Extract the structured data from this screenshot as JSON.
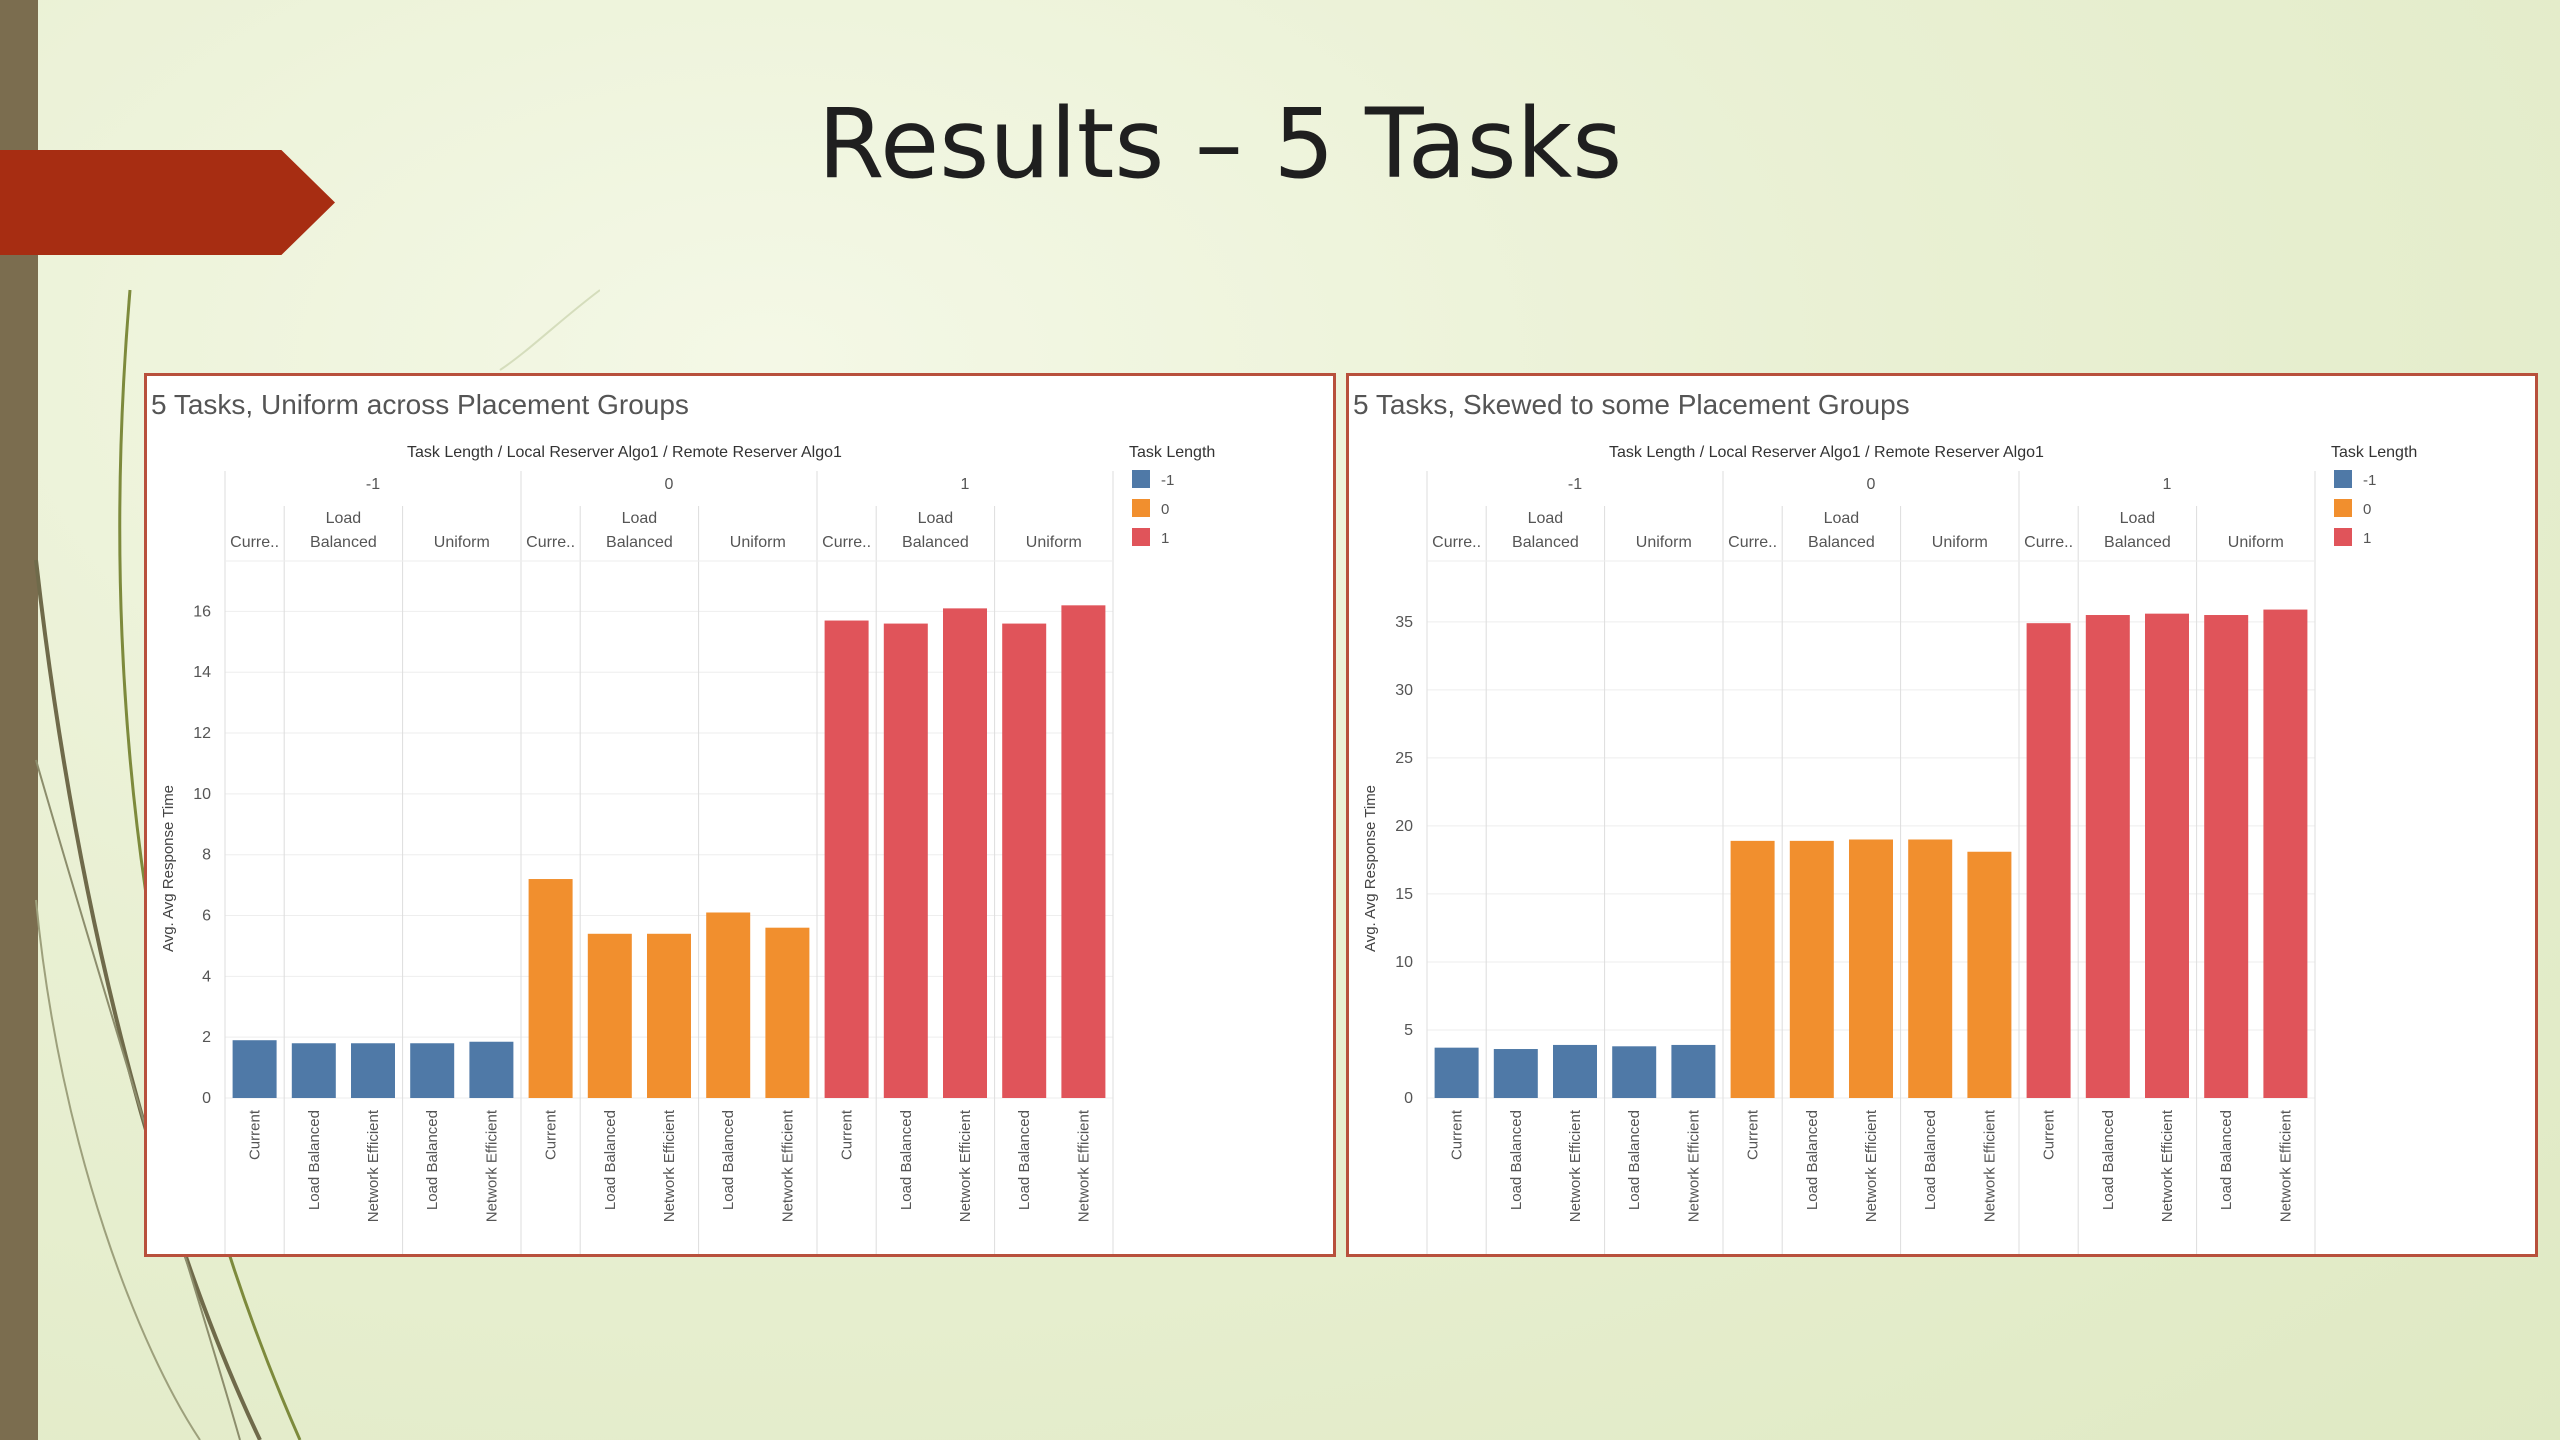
{
  "slide": {
    "title": "Results – 5 Tasks"
  },
  "colors": {
    "neg1": "#4f79a7",
    "zero": "#f18f2e",
    "one": "#e0545a"
  },
  "chart_data": [
    {
      "type": "bar",
      "title": "5 Tasks, Uniform across Placement Groups",
      "header": "Task Length  /  Local Reserver Algo1  /  Remote Reserver Algo1",
      "ylabel": "Avg. Avg Response Time",
      "ylim": [
        0,
        17
      ],
      "yticks": [
        0,
        2,
        4,
        6,
        8,
        10,
        12,
        14,
        16
      ],
      "legend": {
        "title": "Task Length",
        "position": "top-right",
        "items": [
          {
            "label": "-1",
            "color": "#4f79a7"
          },
          {
            "label": "0",
            "color": "#f18f2e"
          },
          {
            "label": "1",
            "color": "#e0545a"
          }
        ]
      },
      "groups": [
        {
          "label": "-1",
          "color": "#4f79a7",
          "subgroups": [
            {
              "label": "Curre..",
              "bars": [
                {
                  "label": "Current",
                  "value": 1.9
                }
              ]
            },
            {
              "label": [
                "Load",
                "Balanced"
              ],
              "bars": [
                {
                  "label": "Load Balanced",
                  "value": 1.8
                },
                {
                  "label": "Network Efficient",
                  "value": 1.8
                }
              ]
            },
            {
              "label": "Uniform",
              "bars": [
                {
                  "label": "Load Balanced",
                  "value": 1.8
                },
                {
                  "label": "Network Efficient",
                  "value": 1.85
                }
              ]
            }
          ]
        },
        {
          "label": "0",
          "color": "#f18f2e",
          "subgroups": [
            {
              "label": "Curre..",
              "bars": [
                {
                  "label": "Current",
                  "value": 7.2
                }
              ]
            },
            {
              "label": [
                "Load",
                "Balanced"
              ],
              "bars": [
                {
                  "label": "Load Balanced",
                  "value": 5.4
                },
                {
                  "label": "Network Efficient",
                  "value": 5.4
                }
              ]
            },
            {
              "label": "Uniform",
              "bars": [
                {
                  "label": "Load Balanced",
                  "value": 6.1
                },
                {
                  "label": "Network Efficient",
                  "value": 5.6
                }
              ]
            }
          ]
        },
        {
          "label": "1",
          "color": "#e0545a",
          "subgroups": [
            {
              "label": "Curre..",
              "bars": [
                {
                  "label": "Current",
                  "value": 15.7
                }
              ]
            },
            {
              "label": [
                "Load",
                "Balanced"
              ],
              "bars": [
                {
                  "label": "Load Balanced",
                  "value": 15.6
                },
                {
                  "label": "Network Efficient",
                  "value": 16.1
                }
              ]
            },
            {
              "label": "Uniform",
              "bars": [
                {
                  "label": "Load Balanced",
                  "value": 15.6
                },
                {
                  "label": "Network Efficient",
                  "value": 16.2
                }
              ]
            }
          ]
        }
      ]
    },
    {
      "type": "bar",
      "title": "5 Tasks, Skewed to some Placement Groups",
      "header": "Task Length  /  Local Reserver Algo1  /  Remote Reserver Algo1",
      "ylabel": "Avg. Avg Response Time",
      "ylim": [
        0,
        38
      ],
      "yticks": [
        0,
        5,
        10,
        15,
        20,
        25,
        30,
        35
      ],
      "legend": {
        "title": "Task Length",
        "position": "top-right",
        "items": [
          {
            "label": "-1",
            "color": "#4f79a7"
          },
          {
            "label": "0",
            "color": "#f18f2e"
          },
          {
            "label": "1",
            "color": "#e0545a"
          }
        ]
      },
      "groups": [
        {
          "label": "-1",
          "color": "#4f79a7",
          "subgroups": [
            {
              "label": "Curre..",
              "bars": [
                {
                  "label": "Current",
                  "value": 3.7
                }
              ]
            },
            {
              "label": [
                "Load",
                "Balanced"
              ],
              "bars": [
                {
                  "label": "Load Balanced",
                  "value": 3.6
                },
                {
                  "label": "Network Efficient",
                  "value": 3.9
                }
              ]
            },
            {
              "label": "Uniform",
              "bars": [
                {
                  "label": "Load Balanced",
                  "value": 3.8
                },
                {
                  "label": "Network Efficient",
                  "value": 3.9
                }
              ]
            }
          ]
        },
        {
          "label": "0",
          "color": "#f18f2e",
          "subgroups": [
            {
              "label": "Curre..",
              "bars": [
                {
                  "label": "Current",
                  "value": 18.9
                }
              ]
            },
            {
              "label": [
                "Load",
                "Balanced"
              ],
              "bars": [
                {
                  "label": "Load Balanced",
                  "value": 18.9
                },
                {
                  "label": "Network Efficient",
                  "value": 19.0
                }
              ]
            },
            {
              "label": "Uniform",
              "bars": [
                {
                  "label": "Load Balanced",
                  "value": 19.0
                },
                {
                  "label": "Network Efficient",
                  "value": 18.1
                }
              ]
            }
          ]
        },
        {
          "label": "1",
          "color": "#e0545a",
          "subgroups": [
            {
              "label": "Curre..",
              "bars": [
                {
                  "label": "Current",
                  "value": 34.9
                }
              ]
            },
            {
              "label": [
                "Load",
                "Balanced"
              ],
              "bars": [
                {
                  "label": "Load Balanced",
                  "value": 35.5
                },
                {
                  "label": "Network Efficient",
                  "value": 35.6
                }
              ]
            },
            {
              "label": "Uniform",
              "bars": [
                {
                  "label": "Load Balanced",
                  "value": 35.5
                },
                {
                  "label": "Network Efficient",
                  "value": 35.9
                }
              ]
            }
          ]
        }
      ]
    }
  ]
}
